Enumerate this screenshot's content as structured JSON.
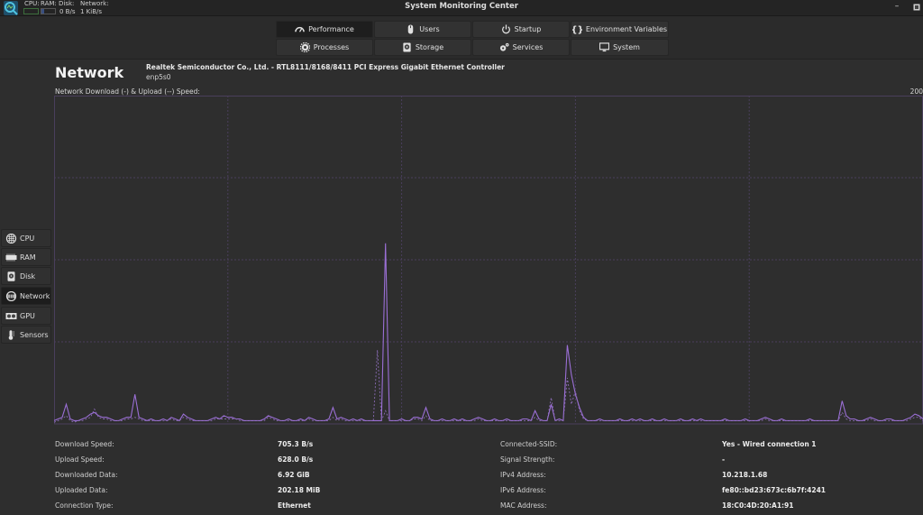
{
  "window": {
    "title": "System Monitoring Center",
    "minimize_label": "–",
    "maximize_label": "▫"
  },
  "mini_monitor": {
    "labels": [
      "CPU:",
      "RAM:",
      "Disk:",
      "Network:"
    ],
    "disk_value": "0 B/s",
    "network_value": "1 KiB/s",
    "cpu_bar_color": "#3c6e3c",
    "ram_bar_color": "#3a4f80"
  },
  "main_tabs": [
    {
      "label": "Performance",
      "icon": "gauge-icon",
      "active": true
    },
    {
      "label": "Users",
      "icon": "mouse-icon",
      "active": false
    },
    {
      "label": "Startup",
      "icon": "power-icon",
      "active": false
    },
    {
      "label": "Environment Variables",
      "icon": "braces-icon",
      "active": false
    },
    {
      "label": "Processes",
      "icon": "gear-icon",
      "active": false
    },
    {
      "label": "Storage",
      "icon": "hard-disk-icon",
      "active": false
    },
    {
      "label": "Services",
      "icon": "gears-icon",
      "active": false
    },
    {
      "label": "System",
      "icon": "monitor-icon",
      "active": false
    }
  ],
  "side_tabs": [
    {
      "label": "CPU",
      "icon": "cpu-icon",
      "active": false
    },
    {
      "label": "RAM",
      "icon": "ram-icon",
      "active": false
    },
    {
      "label": "Disk",
      "icon": "disk-icon",
      "active": false
    },
    {
      "label": "Network",
      "icon": "network-icon",
      "active": true
    },
    {
      "label": "GPU",
      "icon": "gpu-icon",
      "active": false
    },
    {
      "label": "Sensors",
      "icon": "thermometer-icon",
      "active": false
    }
  ],
  "network": {
    "title": "Network",
    "device": "Realtek Semiconductor Co., Ltd. - RTL8111/8168/8411 PCI Express Gigabit Ethernet Controller",
    "interface": "enp5s0",
    "chart_label": "Network Download (-) & Upload (--) Speed:",
    "chart_max": "200"
  },
  "chart_data": {
    "type": "line",
    "title": "Network Download (-) & Upload (--) Speed:",
    "ylim": [
      0,
      200
    ],
    "y_max_label": "200",
    "grid": true,
    "grid_cols": 5,
    "grid_rows": 4,
    "line_color": "#9b6fd6",
    "series": [
      {
        "name": "Download (-)",
        "style": "solid",
        "values": [
          2,
          3,
          4,
          12,
          3,
          2,
          2,
          3,
          4,
          6,
          7,
          5,
          4,
          4,
          3,
          2,
          2,
          3,
          4,
          4,
          18,
          4,
          3,
          2,
          3,
          2,
          2,
          3,
          2,
          4,
          3,
          2,
          6,
          4,
          3,
          2,
          2,
          2,
          2,
          3,
          4,
          3,
          5,
          4,
          4,
          3,
          3,
          2,
          2,
          2,
          2,
          2,
          3,
          5,
          4,
          3,
          2,
          2,
          3,
          2,
          2,
          3,
          2,
          4,
          3,
          2,
          2,
          2,
          3,
          10,
          3,
          4,
          3,
          2,
          3,
          2,
          3,
          2,
          2,
          2,
          2,
          2,
          110,
          2,
          2,
          2,
          3,
          2,
          2,
          4,
          4,
          3,
          10,
          3,
          2,
          2,
          3,
          2,
          2,
          3,
          2,
          3,
          2,
          2,
          3,
          4,
          3,
          2,
          2,
          3,
          2,
          2,
          3,
          2,
          2,
          2,
          3,
          3,
          2,
          8,
          3,
          2,
          2,
          12,
          2,
          3,
          2,
          48,
          30,
          18,
          10,
          4,
          2,
          2,
          2,
          3,
          2,
          2,
          2,
          2,
          3,
          2,
          2,
          3,
          2,
          3,
          2,
          2,
          3,
          2,
          2,
          3,
          2,
          2,
          2,
          3,
          2,
          2,
          3,
          2,
          3,
          2,
          2,
          2,
          2,
          2,
          3,
          2,
          2,
          2,
          2,
          3,
          2,
          2,
          2,
          3,
          4,
          3,
          2,
          2,
          3,
          2,
          2,
          2,
          2,
          2,
          2,
          3,
          2,
          2,
          2,
          2,
          2,
          2,
          2,
          14,
          5,
          3,
          3,
          2,
          2,
          3,
          4,
          3,
          2,
          2,
          3,
          3,
          2,
          2,
          2,
          3,
          4,
          6,
          5,
          3
        ]
      },
      {
        "name": "Upload (--)",
        "style": "dashed",
        "values": [
          1,
          2,
          3,
          5,
          2,
          1,
          2,
          2,
          3,
          4,
          9,
          4,
          3,
          3,
          2,
          2,
          2,
          2,
          3,
          3,
          4,
          3,
          2,
          2,
          2,
          2,
          2,
          2,
          2,
          3,
          2,
          2,
          4,
          3,
          2,
          2,
          2,
          2,
          2,
          2,
          3,
          3,
          3,
          3,
          3,
          3,
          2,
          2,
          2,
          2,
          2,
          2,
          2,
          4,
          3,
          2,
          2,
          2,
          2,
          2,
          2,
          2,
          2,
          3,
          2,
          2,
          2,
          2,
          2,
          4,
          2,
          3,
          2,
          2,
          2,
          2,
          2,
          2,
          2,
          2,
          45,
          2,
          8,
          2,
          2,
          2,
          2,
          2,
          2,
          3,
          3,
          2,
          5,
          2,
          2,
          2,
          2,
          2,
          2,
          2,
          2,
          2,
          2,
          2,
          2,
          3,
          2,
          2,
          2,
          2,
          2,
          2,
          2,
          2,
          2,
          2,
          2,
          2,
          2,
          4,
          2,
          2,
          2,
          16,
          2,
          2,
          2,
          28,
          12,
          20,
          8,
          3,
          2,
          2,
          2,
          2,
          2,
          2,
          2,
          2,
          2,
          2,
          2,
          2,
          2,
          2,
          2,
          2,
          2,
          2,
          2,
          2,
          2,
          2,
          2,
          2,
          2,
          2,
          2,
          2,
          2,
          2,
          2,
          2,
          2,
          2,
          2,
          2,
          2,
          2,
          2,
          2,
          2,
          2,
          2,
          2,
          3,
          2,
          2,
          2,
          2,
          2,
          2,
          2,
          2,
          2,
          2,
          2,
          2,
          2,
          2,
          2,
          2,
          2,
          2,
          7,
          3,
          2,
          2,
          2,
          2,
          2,
          3,
          2,
          2,
          2,
          2,
          2,
          2,
          2,
          2,
          2,
          3,
          4,
          4,
          2
        ]
      }
    ]
  },
  "details": {
    "left": [
      {
        "label": "Download Speed:",
        "value": "705.3 B/s"
      },
      {
        "label": "Upload Speed:",
        "value": "628.0 B/s"
      },
      {
        "label": "Downloaded Data:",
        "value": "6.92 GiB"
      },
      {
        "label": "Uploaded Data:",
        "value": "202.18 MiB"
      },
      {
        "label": "Connection Type:",
        "value": "Ethernet"
      }
    ],
    "right": [
      {
        "label": "Connected-SSID:",
        "value": "Yes - Wired connection 1"
      },
      {
        "label": "Signal Strength:",
        "value": "-"
      },
      {
        "label": "IPv4 Address:",
        "value": "10.218.1.68"
      },
      {
        "label": "IPv6 Address:",
        "value": "fe80::bd23:673c:6b7f:4241"
      },
      {
        "label": "MAC Address:",
        "value": "18:C0:4D:20:A1:91"
      }
    ]
  }
}
